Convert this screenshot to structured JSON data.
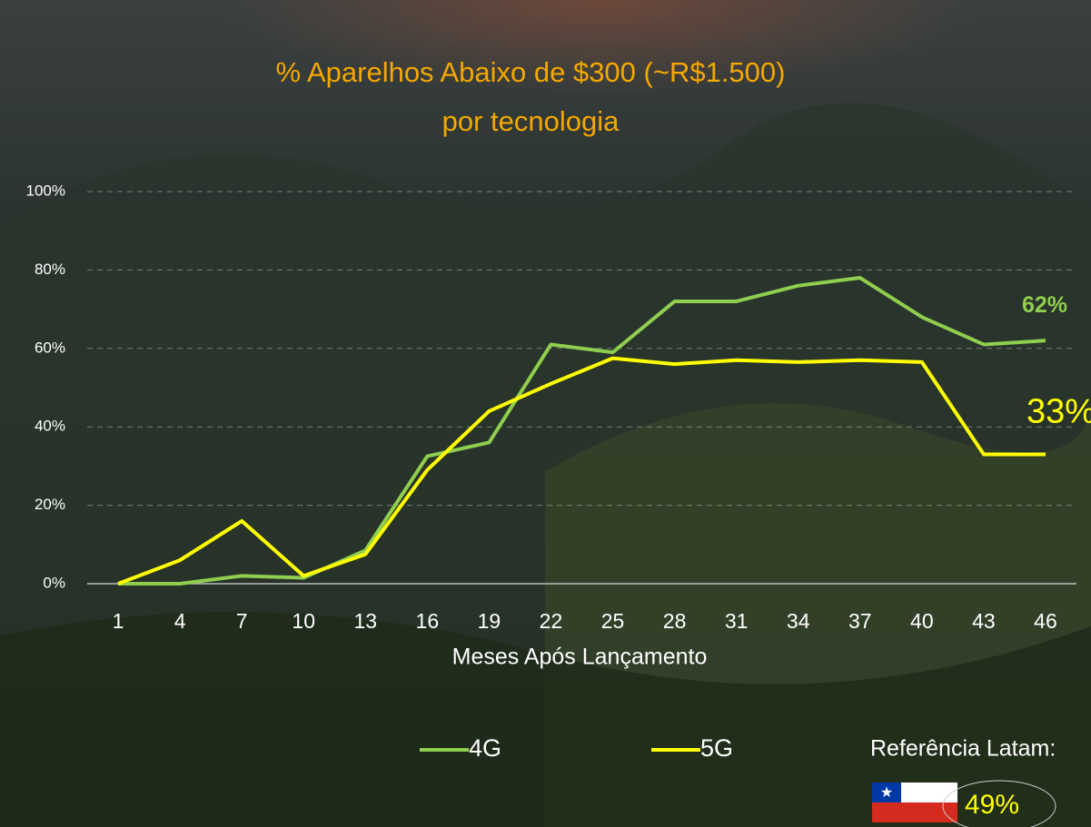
{
  "chart_data": {
    "type": "line",
    "title": "% Aparelhos Abaixo de $300 (~R$1.500)",
    "subtitle": "por tecnologia",
    "x_label": "Meses Após Lançamento",
    "x": [
      1,
      4,
      7,
      10,
      13,
      16,
      19,
      22,
      25,
      28,
      31,
      34,
      37,
      40,
      43,
      46
    ],
    "xlim": [
      -0.5,
      47.5
    ],
    "ylim": [
      0,
      100
    ],
    "yticks": [
      {
        "value": 0,
        "label": "0%"
      },
      {
        "value": 20,
        "label": "20%"
      },
      {
        "value": 40,
        "label": "40%"
      },
      {
        "value": 60,
        "label": "60%"
      },
      {
        "value": 80,
        "label": "80%"
      },
      {
        "value": 100,
        "label": "100%"
      }
    ],
    "grid": true,
    "series": [
      {
        "name": "4G",
        "color": "#8fce4e",
        "values": [
          0,
          0,
          2,
          1.5,
          8.5,
          32.5,
          36,
          61,
          59,
          72,
          72,
          76,
          78,
          68,
          61,
          62
        ],
        "value_labels": [
          null,
          null,
          null,
          null,
          null,
          null,
          null,
          null,
          null,
          null,
          null,
          null,
          null,
          null,
          null,
          "62%"
        ]
      },
      {
        "name": "5G",
        "color": "#ffff00",
        "values": [
          0,
          6,
          16,
          2,
          7.5,
          29,
          44,
          51,
          57.5,
          56,
          57,
          56.5,
          57,
          56.5,
          33,
          33
        ],
        "value_labels": [
          null,
          null,
          null,
          null,
          null,
          null,
          null,
          null,
          null,
          null,
          null,
          null,
          null,
          null,
          null,
          "33%"
        ]
      }
    ],
    "annotation": {
      "text": "Referência Latam:",
      "value": 49,
      "label": "49%"
    }
  }
}
